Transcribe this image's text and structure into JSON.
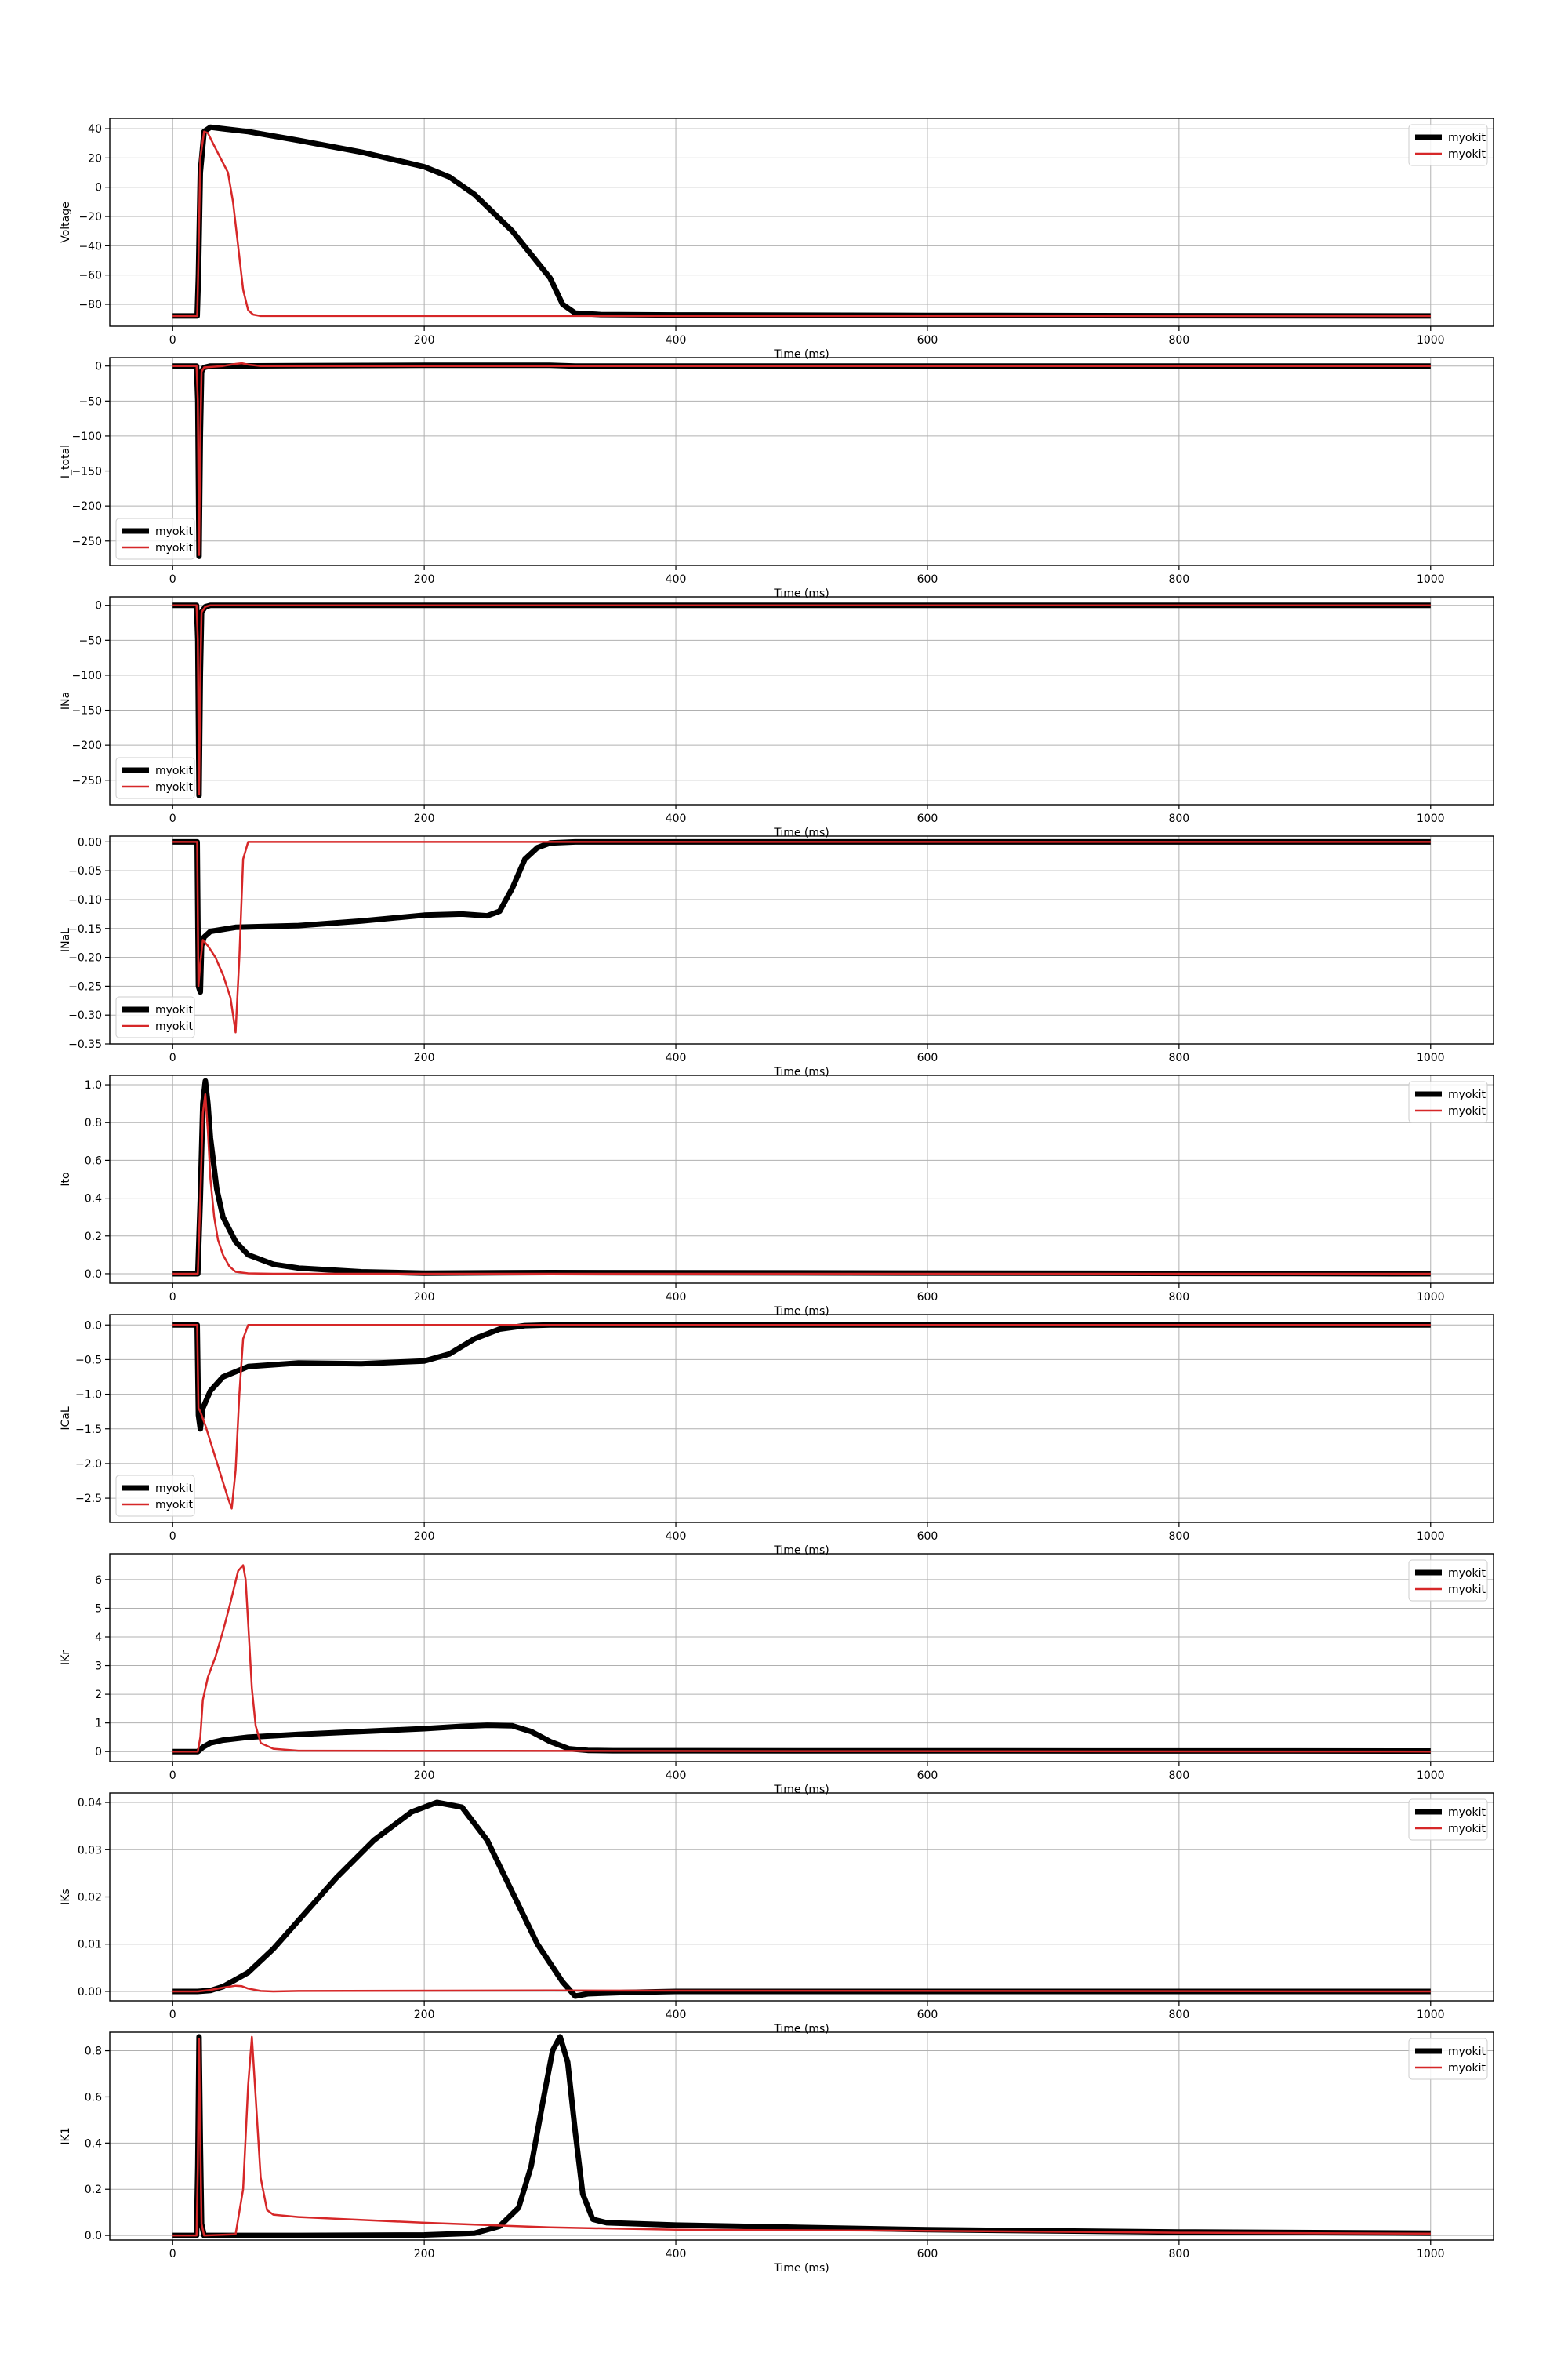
{
  "figure": {
    "background": "#ffffff",
    "grid_color": "#b0b0b0",
    "series_colors": [
      "#000000",
      "#d62728"
    ]
  },
  "chart_data": [
    {
      "type": "line",
      "ylabel": "Voltage",
      "xlabel": "Time (ms)",
      "xlim": [
        -50,
        1050
      ],
      "xticks": [
        0,
        200,
        400,
        600,
        800,
        1000
      ],
      "ylim": [
        -95,
        47
      ],
      "yticks": [
        -80,
        -60,
        -40,
        -20,
        0,
        20,
        40
      ],
      "ytick_labels": [
        "−80",
        "−60",
        "−40",
        "−20",
        "0",
        "20",
        "40"
      ],
      "grid": true,
      "legend": "upper right",
      "series": [
        {
          "name": "myokit",
          "color": "#000000",
          "width": 7,
          "x": [
            0,
            19.5,
            20.5,
            22,
            25,
            30,
            40,
            60,
            100,
            150,
            200,
            220,
            240,
            270,
            300,
            310,
            320,
            340,
            400,
            600,
            800,
            1000
          ],
          "y": [
            -88,
            -88,
            -60,
            10,
            38,
            41,
            40,
            38,
            32,
            24,
            14,
            7,
            -5,
            -30,
            -62,
            -80,
            -86,
            -87,
            -87.3,
            -87.6,
            -87.8,
            -88
          ]
        },
        {
          "name": "myokit",
          "color": "#d62728",
          "width": 2.5,
          "x": [
            0,
            19.5,
            20.5,
            22,
            25,
            28,
            32,
            38,
            44,
            48,
            52,
            56,
            60,
            64,
            70,
            80,
            100,
            1000
          ],
          "y": [
            -88,
            -88,
            -50,
            20,
            38,
            37,
            30,
            20,
            10,
            -10,
            -40,
            -70,
            -84,
            -87,
            -88,
            -88,
            -88,
            -88
          ]
        }
      ]
    },
    {
      "type": "line",
      "ylabel": "I_total",
      "xlabel": "Time (ms)",
      "xlim": [
        -50,
        1050
      ],
      "xticks": [
        0,
        200,
        400,
        600,
        800,
        1000
      ],
      "ylim": [
        -285,
        12
      ],
      "yticks": [
        -250,
        -200,
        -150,
        -100,
        -50,
        0
      ],
      "ytick_labels": [
        "−250",
        "−200",
        "−150",
        "−100",
        "−50",
        "0"
      ],
      "grid": true,
      "legend": "lower left",
      "series": [
        {
          "name": "myokit",
          "color": "#000000",
          "width": 7,
          "x": [
            0,
            19,
            20,
            21,
            22,
            23,
            25,
            30,
            100,
            200,
            300,
            320,
            1000
          ],
          "y": [
            0,
            0,
            -50,
            -272,
            -100,
            -8,
            -2,
            0,
            0.5,
            1,
            1,
            0,
            0
          ]
        },
        {
          "name": "myokit",
          "color": "#d62728",
          "width": 2.5,
          "x": [
            0,
            19,
            20,
            21,
            22,
            23,
            25,
            40,
            50,
            55,
            60,
            70,
            1000
          ],
          "y": [
            0,
            0,
            -50,
            -270,
            -100,
            -8,
            -2,
            0,
            3,
            4,
            2,
            0,
            0
          ]
        }
      ]
    },
    {
      "type": "line",
      "ylabel": "INa",
      "xlabel": "Time (ms)",
      "xlim": [
        -50,
        1050
      ],
      "xticks": [
        0,
        200,
        400,
        600,
        800,
        1000
      ],
      "ylim": [
        -285,
        12
      ],
      "yticks": [
        -250,
        -200,
        -150,
        -100,
        -50,
        0
      ],
      "ytick_labels": [
        "−250",
        "−200",
        "−150",
        "−100",
        "−50",
        "0"
      ],
      "grid": true,
      "legend": "lower left",
      "series": [
        {
          "name": "myokit",
          "color": "#000000",
          "width": 7,
          "x": [
            0,
            19,
            20,
            21,
            22,
            23,
            26,
            30,
            1000
          ],
          "y": [
            0,
            0,
            -50,
            -272,
            -100,
            -10,
            -2,
            0,
            0
          ]
        },
        {
          "name": "myokit",
          "color": "#d62728",
          "width": 2.5,
          "x": [
            0,
            19,
            20,
            21,
            22,
            23,
            26,
            30,
            1000
          ],
          "y": [
            0,
            0,
            -50,
            -270,
            -100,
            -10,
            -2,
            0,
            0
          ]
        }
      ]
    },
    {
      "type": "line",
      "ylabel": "INaL",
      "xlabel": "Time (ms)",
      "xlim": [
        -50,
        1050
      ],
      "xticks": [
        0,
        200,
        400,
        600,
        800,
        1000
      ],
      "ylim": [
        -0.35,
        0.01
      ],
      "yticks": [
        -0.35,
        -0.3,
        -0.25,
        -0.2,
        -0.15,
        -0.1,
        -0.05,
        0.0
      ],
      "ytick_labels": [
        "−0.35",
        "−0.30",
        "−0.25",
        "−0.20",
        "−0.15",
        "−0.10",
        "−0.05",
        "0.00"
      ],
      "grid": true,
      "legend": "lower left",
      "series": [
        {
          "name": "myokit",
          "color": "#000000",
          "width": 7,
          "x": [
            0,
            19.5,
            20.5,
            22,
            23,
            25,
            30,
            50,
            100,
            150,
            200,
            230,
            250,
            260,
            270,
            280,
            290,
            300,
            320,
            1000
          ],
          "y": [
            0,
            0,
            -0.25,
            -0.26,
            -0.18,
            -0.165,
            -0.155,
            -0.148,
            -0.145,
            -0.137,
            -0.127,
            -0.125,
            -0.128,
            -0.12,
            -0.08,
            -0.03,
            -0.01,
            -0.002,
            0,
            0
          ]
        },
        {
          "name": "myokit",
          "color": "#d62728",
          "width": 2.5,
          "x": [
            0,
            19.5,
            20.5,
            22,
            24,
            28,
            34,
            40,
            46,
            50,
            53,
            56,
            60,
            1000
          ],
          "y": [
            0,
            0,
            -0.25,
            -0.21,
            -0.17,
            -0.18,
            -0.2,
            -0.23,
            -0.27,
            -0.33,
            -0.2,
            -0.03,
            0,
            0
          ]
        }
      ]
    },
    {
      "type": "line",
      "ylabel": "Ito",
      "xlabel": "Time (ms)",
      "xlim": [
        -50,
        1050
      ],
      "xticks": [
        0,
        200,
        400,
        600,
        800,
        1000
      ],
      "ylim": [
        -0.05,
        1.05
      ],
      "yticks": [
        0.0,
        0.2,
        0.4,
        0.6,
        0.8,
        1.0
      ],
      "ytick_labels": [
        "0.0",
        "0.2",
        "0.4",
        "0.6",
        "0.8",
        "1.0"
      ],
      "grid": true,
      "legend": "upper right",
      "series": [
        {
          "name": "myokit",
          "color": "#000000",
          "width": 7,
          "x": [
            0,
            20,
            22,
            24,
            26,
            28,
            30,
            35,
            40,
            50,
            60,
            80,
            100,
            150,
            200,
            300,
            1000
          ],
          "y": [
            0,
            0,
            0.4,
            0.9,
            1.02,
            0.9,
            0.72,
            0.45,
            0.3,
            0.17,
            0.1,
            0.05,
            0.03,
            0.01,
            0.003,
            0.006,
            0
          ]
        },
        {
          "name": "myokit",
          "color": "#d62728",
          "width": 2.5,
          "x": [
            0,
            20,
            22,
            24,
            26,
            28,
            30,
            33,
            36,
            40,
            45,
            50,
            60,
            80,
            1000
          ],
          "y": [
            0,
            0,
            0.4,
            0.85,
            0.95,
            0.75,
            0.5,
            0.3,
            0.18,
            0.1,
            0.04,
            0.01,
            0.002,
            0,
            0
          ]
        }
      ]
    },
    {
      "type": "line",
      "ylabel": "ICaL",
      "xlabel": "Time (ms)",
      "xlim": [
        -50,
        1050
      ],
      "xticks": [
        0,
        200,
        400,
        600,
        800,
        1000
      ],
      "ylim": [
        -2.85,
        0.15
      ],
      "yticks": [
        -2.5,
        -2.0,
        -1.5,
        -1.0,
        -0.5,
        0.0
      ],
      "ytick_labels": [
        "−2.5",
        "−2.0",
        "−1.5",
        "−1.0",
        "−0.5",
        "0.0"
      ],
      "grid": true,
      "legend": "lower left",
      "series": [
        {
          "name": "myokit",
          "color": "#000000",
          "width": 7,
          "x": [
            0,
            19.5,
            20.5,
            22,
            24,
            30,
            40,
            60,
            100,
            150,
            200,
            220,
            240,
            260,
            280,
            300,
            1000
          ],
          "y": [
            0,
            0,
            -1.3,
            -1.5,
            -1.2,
            -0.95,
            -0.75,
            -0.6,
            -0.55,
            -0.56,
            -0.52,
            -0.42,
            -0.2,
            -0.06,
            -0.01,
            0,
            0
          ]
        },
        {
          "name": "myokit",
          "color": "#d62728",
          "width": 2.5,
          "x": [
            0,
            19.5,
            20.5,
            22,
            26,
            32,
            38,
            44,
            47,
            50,
            53,
            56,
            60,
            1000
          ],
          "y": [
            0,
            0,
            -1.2,
            -1.25,
            -1.45,
            -1.8,
            -2.15,
            -2.5,
            -2.65,
            -2.1,
            -1.0,
            -0.2,
            0,
            0
          ]
        }
      ]
    },
    {
      "type": "line",
      "ylabel": "IKr",
      "xlabel": "Time (ms)",
      "xlim": [
        -50,
        1050
      ],
      "xticks": [
        0,
        200,
        400,
        600,
        800,
        1000
      ],
      "ylim": [
        -0.35,
        6.9
      ],
      "yticks": [
        0,
        1,
        2,
        3,
        4,
        5,
        6
      ],
      "ytick_labels": [
        "0",
        "1",
        "2",
        "3",
        "4",
        "5",
        "6"
      ],
      "grid": true,
      "legend": "upper right",
      "series": [
        {
          "name": "myokit",
          "color": "#000000",
          "width": 7,
          "x": [
            0,
            20,
            24,
            30,
            40,
            60,
            100,
            150,
            200,
            230,
            250,
            270,
            285,
            300,
            315,
            330,
            350,
            1000
          ],
          "y": [
            0,
            0,
            0.15,
            0.3,
            0.4,
            0.5,
            0.6,
            0.7,
            0.8,
            0.88,
            0.92,
            0.9,
            0.7,
            0.35,
            0.1,
            0.04,
            0.03,
            0.02
          ]
        },
        {
          "name": "myokit",
          "color": "#d62728",
          "width": 2.5,
          "x": [
            0,
            20,
            22,
            24,
            28,
            34,
            40,
            46,
            52,
            56,
            58,
            60,
            63,
            66,
            70,
            80,
            100,
            1000
          ],
          "y": [
            0,
            0,
            0.5,
            1.8,
            2.6,
            3.3,
            4.2,
            5.2,
            6.3,
            6.5,
            6.0,
            4.5,
            2.2,
            0.9,
            0.3,
            0.1,
            0.03,
            0
          ]
        }
      ]
    },
    {
      "type": "line",
      "ylabel": "IKs",
      "xlabel": "Time (ms)",
      "xlim": [
        -50,
        1050
      ],
      "xticks": [
        0,
        200,
        400,
        600,
        800,
        1000
      ],
      "ylim": [
        -0.002,
        0.042
      ],
      "yticks": [
        0.0,
        0.01,
        0.02,
        0.03,
        0.04
      ],
      "ytick_labels": [
        "0.00",
        "0.01",
        "0.02",
        "0.03",
        "0.04"
      ],
      "grid": true,
      "legend": "upper right",
      "series": [
        {
          "name": "myokit",
          "color": "#000000",
          "width": 7,
          "x": [
            0,
            20,
            30,
            40,
            60,
            80,
            100,
            130,
            160,
            190,
            210,
            230,
            250,
            270,
            290,
            310,
            320,
            330,
            360,
            400,
            1000
          ],
          "y": [
            0,
            0,
            0.0002,
            0.001,
            0.004,
            0.009,
            0.015,
            0.024,
            0.032,
            0.038,
            0.04,
            0.039,
            0.032,
            0.021,
            0.01,
            0.002,
            -0.001,
            -0.0005,
            -0.0002,
            0,
            0
          ]
        },
        {
          "name": "myokit",
          "color": "#d62728",
          "width": 2.5,
          "x": [
            0,
            20,
            30,
            40,
            50,
            55,
            60,
            70,
            80,
            100,
            300,
            1000
          ],
          "y": [
            0,
            0,
            0.0003,
            0.0008,
            0.0012,
            0.0011,
            0.0006,
            0.0001,
            0,
            0.0001,
            0.0002,
            0
          ]
        }
      ]
    },
    {
      "type": "line",
      "ylabel": "IK1",
      "xlabel": "Time (ms)",
      "xlim": [
        -50,
        1050
      ],
      "xticks": [
        0,
        200,
        400,
        600,
        800,
        1000
      ],
      "ylim": [
        -0.02,
        0.88
      ],
      "yticks": [
        0.0,
        0.2,
        0.4,
        0.6,
        0.8
      ],
      "ytick_labels": [
        "0.0",
        "0.2",
        "0.4",
        "0.6",
        "0.8"
      ],
      "grid": true,
      "legend": "upper right",
      "series": [
        {
          "name": "myokit",
          "color": "#000000",
          "width": 7,
          "x": [
            0,
            19,
            20,
            21,
            22,
            23,
            25,
            100,
            200,
            240,
            260,
            275,
            285,
            295,
            302,
            308,
            314,
            320,
            326,
            334,
            345,
            400,
            600,
            800,
            1000
          ],
          "y": [
            0,
            0,
            0.3,
            0.86,
            0.4,
            0.05,
            0,
            0,
            0.002,
            0.01,
            0.04,
            0.12,
            0.3,
            0.6,
            0.8,
            0.86,
            0.75,
            0.45,
            0.18,
            0.07,
            0.055,
            0.045,
            0.025,
            0.015,
            0.01
          ]
        },
        {
          "name": "myokit",
          "color": "#d62728",
          "width": 2.5,
          "x": [
            0,
            19,
            20,
            21,
            22,
            23,
            25,
            50,
            56,
            60,
            63,
            66,
            70,
            75,
            80,
            100,
            200,
            300,
            400,
            600,
            800,
            1000
          ],
          "y": [
            0,
            0,
            0.3,
            0.85,
            0.4,
            0.05,
            0,
            0.005,
            0.2,
            0.65,
            0.86,
            0.6,
            0.25,
            0.11,
            0.09,
            0.08,
            0.055,
            0.035,
            0.025,
            0.02,
            0.012,
            0.008
          ]
        }
      ]
    }
  ]
}
